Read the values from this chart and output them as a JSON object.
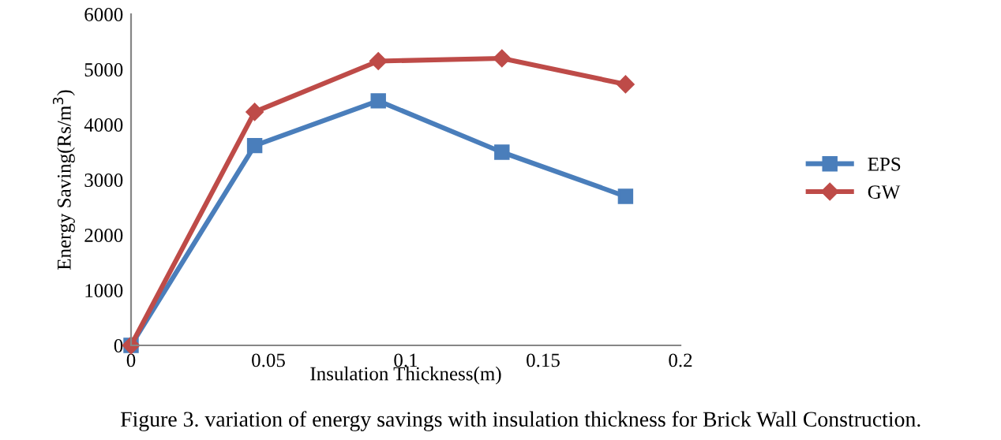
{
  "chart_data": {
    "type": "line",
    "xlabel": "Insulation Thickness(m)",
    "ylabel": "Energy Saving(Rs/m$^{3}$)",
    "x": [
      0,
      0.045,
      0.09,
      0.135,
      0.18
    ],
    "series": [
      {
        "name": "EPS",
        "color": "#4a7ebb",
        "marker": "square",
        "values": [
          0,
          3620,
          4430,
          3500,
          2700
        ]
      },
      {
        "name": "GW",
        "color": "#be4b48",
        "marker": "diamond",
        "values": [
          0,
          4230,
          5150,
          5200,
          4730
        ]
      }
    ],
    "xlim": [
      0,
      0.2
    ],
    "xticks": [
      0,
      0.05,
      0.1,
      0.15,
      0.2
    ],
    "ylim": [
      0,
      6000
    ],
    "yticks": [
      0,
      1000,
      2000,
      3000,
      4000,
      5000,
      6000
    ],
    "grid": false,
    "legend": "right",
    "line_style": "solid",
    "annotations": [
      "Figure 3. variation of energy savings with insulation thickness for Brick Wall Construction."
    ]
  }
}
